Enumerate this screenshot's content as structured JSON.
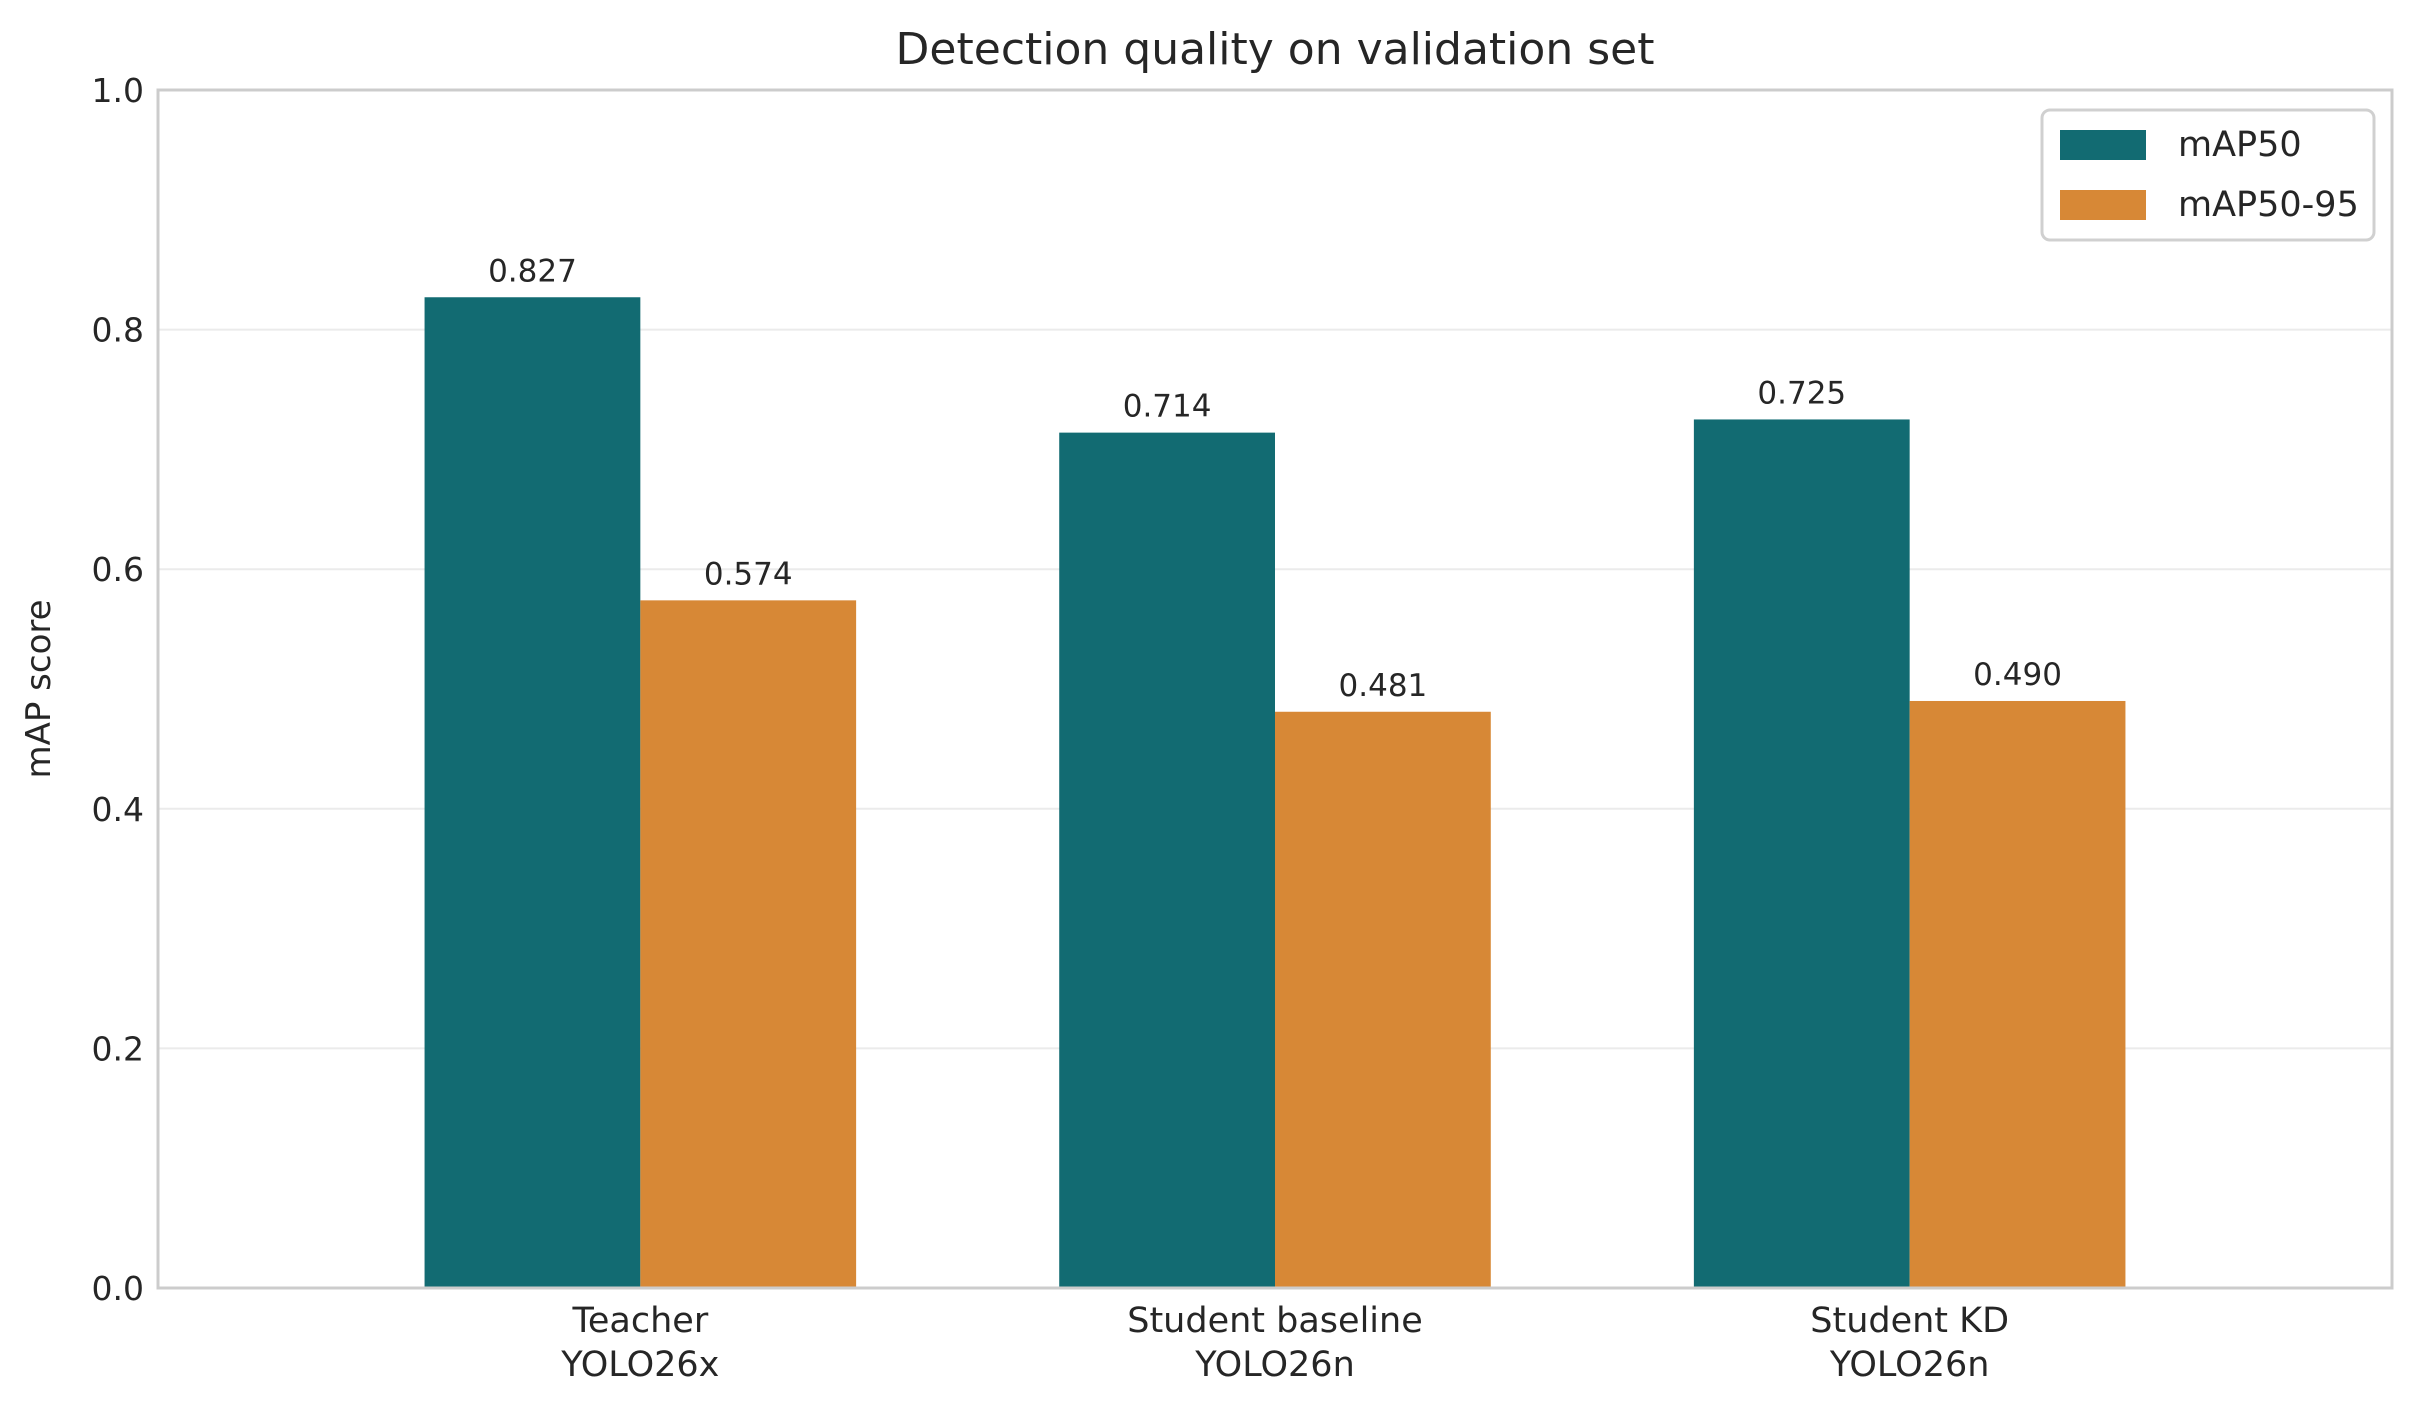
{
  "chart_data": {
    "type": "bar",
    "title": "Detection quality on validation set",
    "xlabel": "",
    "ylabel": "mAP score",
    "ylim": [
      0,
      1.0
    ],
    "yticks": [
      "0.0",
      "0.2",
      "0.4",
      "0.6",
      "0.8",
      "1.0"
    ],
    "categories": [
      [
        "Teacher",
        "YOLO26x"
      ],
      [
        "Student baseline",
        "YOLO26n"
      ],
      [
        "Student KD",
        "YOLO26n"
      ]
    ],
    "series": [
      {
        "name": "mAP50",
        "color": "#126b72",
        "values": [
          0.827,
          0.714,
          0.725
        ],
        "labels": [
          "0.827",
          "0.714",
          "0.725"
        ]
      },
      {
        "name": "mAP50-95",
        "color": "#d78836",
        "values": [
          0.574,
          0.481,
          0.49
        ],
        "labels": [
          "0.574",
          "0.481",
          "0.490"
        ]
      }
    ],
    "grid": "y",
    "legend": "top-right"
  }
}
